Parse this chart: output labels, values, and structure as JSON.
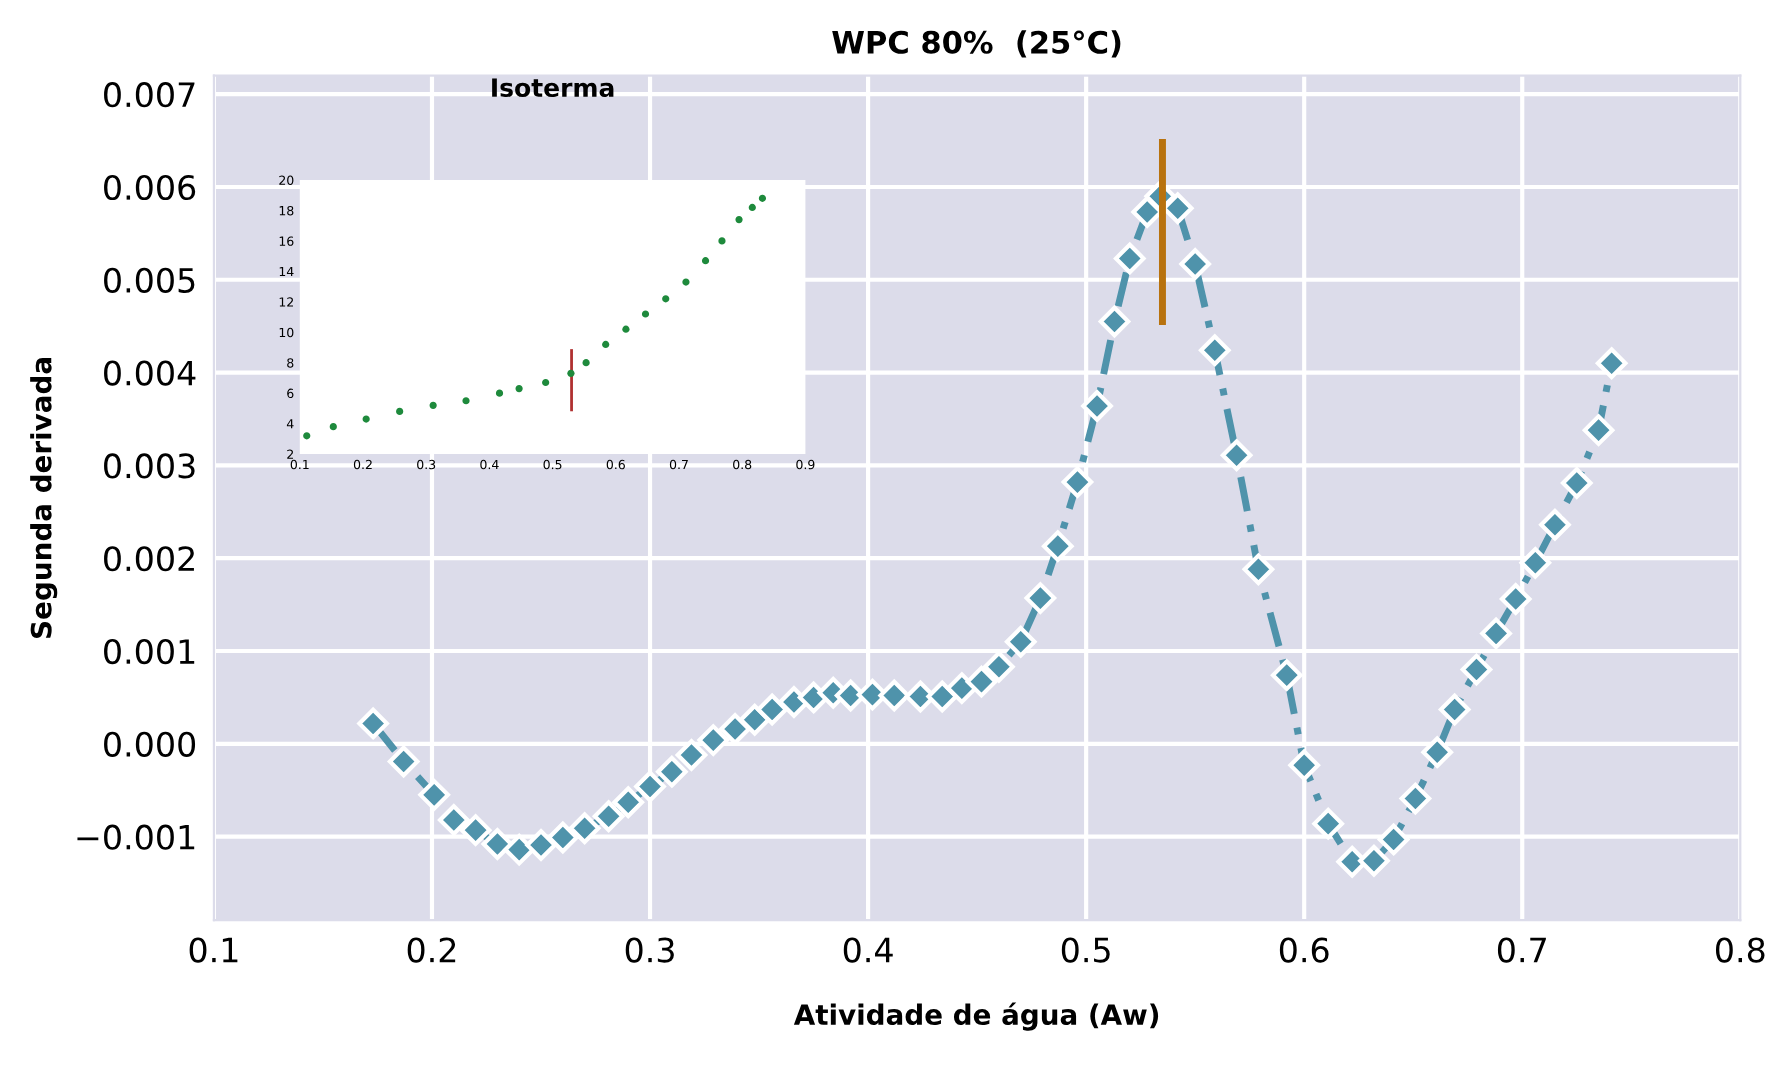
{
  "chart_data": [
    {
      "type": "line",
      "title": "WPC 80%  (25°C)",
      "xlabel": "Atividade de água (Aw)",
      "ylabel": "Segunda derivada",
      "xlim": [
        0.1,
        0.8
      ],
      "ylim": [
        -0.0019,
        0.0072
      ],
      "xticks": [
        0.1,
        0.2,
        0.3,
        0.4,
        0.5,
        0.6,
        0.7,
        0.8
      ],
      "yticks": [
        {
          "value": -0.001,
          "label": "−0.001"
        },
        {
          "value": 0,
          "label": "0.000"
        },
        {
          "value": 0.001,
          "label": "0.001"
        },
        {
          "value": 0.002,
          "label": "0.002"
        },
        {
          "value": 0.003,
          "label": "0.003"
        },
        {
          "value": 0.004,
          "label": "0.004"
        },
        {
          "value": 0.005,
          "label": "0.005"
        },
        {
          "value": 0.006,
          "label": "0.006"
        },
        {
          "value": 0.007,
          "label": "0.007"
        }
      ],
      "grid": true,
      "marker": "diamond",
      "line_style": "dashed",
      "series": [
        {
          "color": "#4f93ab",
          "x": [
            0.173,
            0.187,
            0.201,
            0.21,
            0.22,
            0.23,
            0.24,
            0.25,
            0.26,
            0.27,
            0.281,
            0.29,
            0.3,
            0.31,
            0.319,
            0.329,
            0.339,
            0.348,
            0.356,
            0.366,
            0.375,
            0.384,
            0.392,
            0.402,
            0.412,
            0.424,
            0.434,
            0.443,
            0.452,
            0.46,
            0.47,
            0.479,
            0.487,
            0.496,
            0.505,
            0.513,
            0.52,
            0.528,
            0.534,
            0.542,
            0.55,
            0.559,
            0.569,
            0.579,
            0.592,
            0.6,
            0.611,
            0.622,
            0.632,
            0.641,
            0.651,
            0.661,
            0.669,
            0.679,
            0.688,
            0.697,
            0.706,
            0.715,
            0.725,
            0.735,
            0.741
          ],
          "values": [
            0.00022,
            -0.00019,
            -0.00055,
            -0.00082,
            -0.00093,
            -0.00108,
            -0.00114,
            -0.00109,
            -0.00101,
            -0.00091,
            -0.00078,
            -0.00063,
            -0.00046,
            -0.0003,
            -0.00012,
            4e-05,
            0.00016,
            0.00026,
            0.00037,
            0.00045,
            0.0005,
            0.00055,
            0.00052,
            0.00053,
            0.00052,
            0.00051,
            0.00051,
            0.0006,
            0.00067,
            0.00083,
            0.0011,
            0.00157,
            0.00213,
            0.00282,
            0.00364,
            0.00455,
            0.00523,
            0.00573,
            0.0059,
            0.00577,
            0.00517,
            0.00424,
            0.00311,
            0.00188,
            0.00074,
            -0.00023,
            -0.00086,
            -0.00127,
            -0.00126,
            -0.00103,
            -0.00059,
            -9e-05,
            0.00037,
            0.0008,
            0.00119,
            0.00156,
            0.00195,
            0.00236,
            0.00281,
            0.00338,
            0.0041
          ]
        },
        {
          "color": "#b8720e",
          "marker": "none",
          "line_style": "solid",
          "x": [
            0.535,
            0.535
          ],
          "values": [
            0.00455,
            0.00648
          ]
        }
      ]
    },
    {
      "type": "scatter",
      "title": "Isoterma",
      "xlim": [
        0.1,
        0.9
      ],
      "ylim": [
        2,
        20
      ],
      "xticks": [
        0.1,
        0.2,
        0.3,
        0.4,
        0.5,
        0.6,
        0.7,
        0.8,
        0.9
      ],
      "yticks": [
        2,
        4,
        6,
        8,
        10,
        12,
        14,
        16,
        18,
        20
      ],
      "marker": "circle",
      "series": [
        {
          "color": "#1e8a3c",
          "x": [
            0.111,
            0.153,
            0.205,
            0.258,
            0.311,
            0.363,
            0.416,
            0.447,
            0.489,
            0.529,
            0.553,
            0.584,
            0.616,
            0.647,
            0.679,
            0.711,
            0.742,
            0.768,
            0.795,
            0.816,
            0.832
          ],
          "values": [
            3.2,
            3.8,
            4.3,
            4.8,
            5.2,
            5.5,
            6.0,
            6.3,
            6.7,
            7.3,
            8.0,
            9.2,
            10.2,
            11.2,
            12.2,
            13.3,
            14.7,
            16.0,
            17.4,
            18.2,
            18.8
          ]
        },
        {
          "type": "line",
          "color": "#b03030",
          "marker": "none",
          "x": [
            0.53,
            0.53
          ],
          "values": [
            4.9,
            8.8
          ]
        }
      ]
    }
  ]
}
